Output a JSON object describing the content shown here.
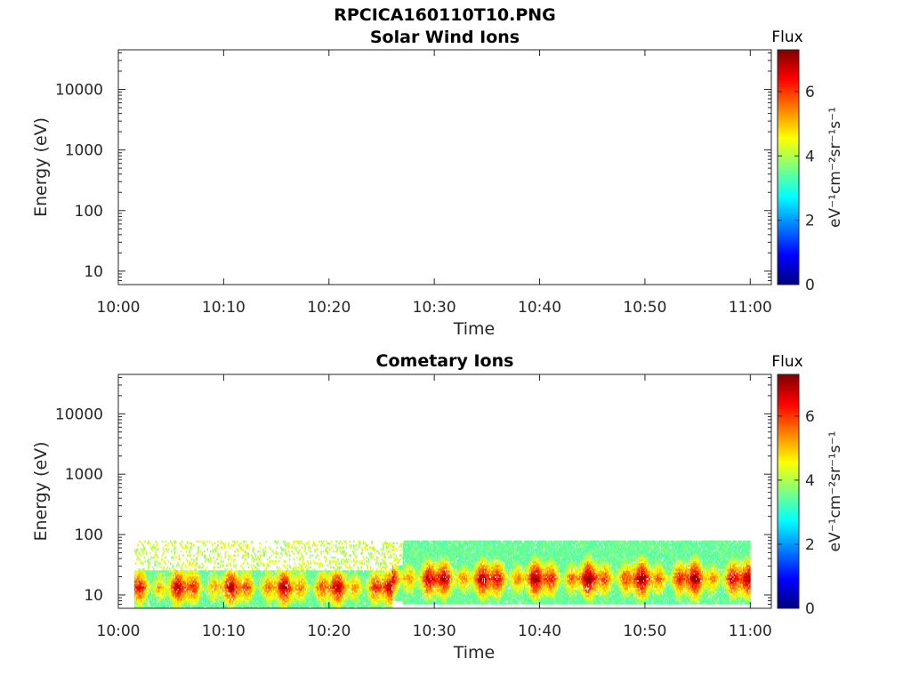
{
  "figure": {
    "title": "RPCICA160110T10.PNG"
  },
  "colormap": [
    "#00007f",
    "#0000ff",
    "#007fff",
    "#00ffff",
    "#7fff7f",
    "#ffff00",
    "#ff7f00",
    "#ff0000",
    "#7f0000"
  ],
  "chart_data": [
    {
      "type": "heatmap",
      "title": "Solar Wind Ions",
      "xlabel": "Time",
      "ylabel": "Energy (eV)",
      "x_ticks": [
        "10:00",
        "10:10",
        "10:20",
        "10:30",
        "10:40",
        "10:50",
        "11:00"
      ],
      "y_ticks": [
        "10",
        "100",
        "1000",
        "10000"
      ],
      "y_scale": "log",
      "y_range": [
        6,
        45000
      ],
      "x_range": [
        "10:00",
        "11:02"
      ],
      "colorbar": {
        "title": "Flux",
        "label": "eV⁻¹cm⁻²sr⁻¹s⁻¹",
        "ticks": [
          "0",
          "2",
          "4",
          "6"
        ],
        "range": [
          0,
          7.3
        ]
      },
      "data": []
    },
    {
      "type": "heatmap",
      "title": "Cometary Ions",
      "xlabel": "Time",
      "ylabel": "Energy (eV)",
      "x_ticks": [
        "10:00",
        "10:10",
        "10:20",
        "10:30",
        "10:40",
        "10:50",
        "11:00"
      ],
      "y_ticks": [
        "10",
        "100",
        "1000",
        "10000"
      ],
      "y_scale": "log",
      "y_range": [
        6,
        45000
      ],
      "x_range": [
        "10:00",
        "11:02"
      ],
      "colorbar": {
        "title": "Flux",
        "label": "eV⁻¹cm⁻²sr⁻¹s⁻¹",
        "ticks": [
          "0",
          "2",
          "4",
          "6"
        ],
        "range": [
          0,
          7.3
        ]
      },
      "data": [
        {
          "time_start": "10:01.5",
          "time_end": "10:26",
          "energy_min_eV": 6,
          "energy_max_eV": 25,
          "peak_energy_eV": 13,
          "peak_flux": 6.5,
          "sparse_max_eV": 80
        },
        {
          "time_start": "10:26",
          "time_end": "10:27",
          "energy_min_eV": 8,
          "energy_max_eV": 30,
          "peak_energy_eV": 18,
          "peak_flux": 6.5,
          "sparse_max_eV": 80
        },
        {
          "time_start": "10:27",
          "time_end": "11:00",
          "energy_min_eV": 7,
          "energy_max_eV": 80,
          "peak_energy_eV": 18,
          "peak_flux": 6.8,
          "sparse_max_eV": 80
        }
      ]
    }
  ]
}
